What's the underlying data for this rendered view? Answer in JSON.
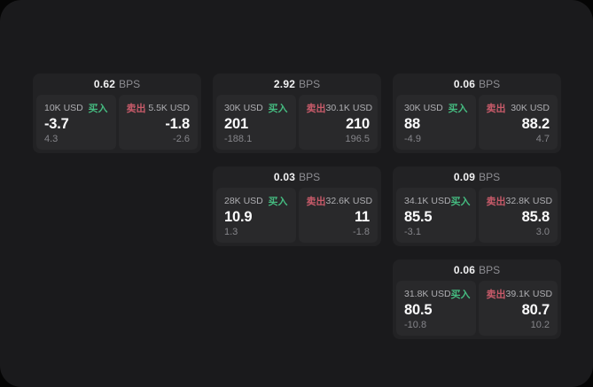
{
  "labels": {
    "buy": "买入",
    "sell": "卖出",
    "bps_suffix": "BPS"
  },
  "colors": {
    "buy": "#45bb80",
    "sell": "#c75a69"
  },
  "cards": [
    {
      "col": 1,
      "row": 1,
      "bps": "0.62",
      "buy": {
        "size": "10K USD",
        "price": "-3.7",
        "delta": "4.3"
      },
      "sell": {
        "size": "5.5K USD",
        "price": "-1.8",
        "delta": "-2.6"
      }
    },
    {
      "col": 2,
      "row": 1,
      "bps": "2.92",
      "buy": {
        "size": "30K USD",
        "price": "201",
        "delta": "-188.1"
      },
      "sell": {
        "size": "30.1K USD",
        "price": "210",
        "delta": "196.5"
      }
    },
    {
      "col": 3,
      "row": 1,
      "bps": "0.06",
      "buy": {
        "size": "30K USD",
        "price": "88",
        "delta": "-4.9"
      },
      "sell": {
        "size": "30K USD",
        "price": "88.2",
        "delta": "4.7"
      }
    },
    {
      "col": 2,
      "row": 2,
      "bps": "0.03",
      "buy": {
        "size": "28K USD",
        "price": "10.9",
        "delta": "1.3"
      },
      "sell": {
        "size": "32.6K USD",
        "price": "11",
        "delta": "-1.8"
      }
    },
    {
      "col": 3,
      "row": 2,
      "bps": "0.09",
      "buy": {
        "size": "34.1K USD",
        "price": "85.5",
        "delta": "-3.1"
      },
      "sell": {
        "size": "32.8K USD",
        "price": "85.8",
        "delta": "3.0"
      }
    },
    {
      "col": 3,
      "row": 3,
      "bps": "0.06",
      "buy": {
        "size": "31.8K USD",
        "price": "80.5",
        "delta": "-10.8"
      },
      "sell": {
        "size": "39.1K USD",
        "price": "80.7",
        "delta": "10.2"
      }
    }
  ]
}
